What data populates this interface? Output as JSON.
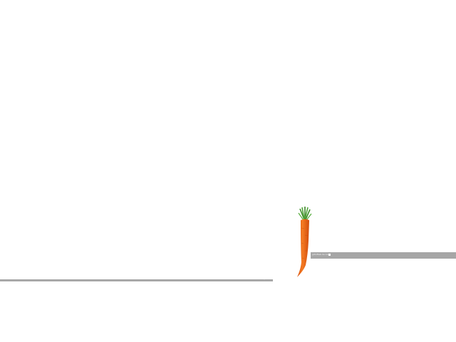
{
  "desktop": {
    "background_color": "#ffffff",
    "carrot": {
      "icon": "carrot-icon",
      "body_color": "#f26a1b",
      "leaf_color": "#3e8e2a"
    },
    "left_bar": {
      "color": "#a8a8a8",
      "label": "..."
    },
    "right_bar": {
      "color": "#a6a6a6",
      "text": "gitroftab.dv.com"
    }
  }
}
